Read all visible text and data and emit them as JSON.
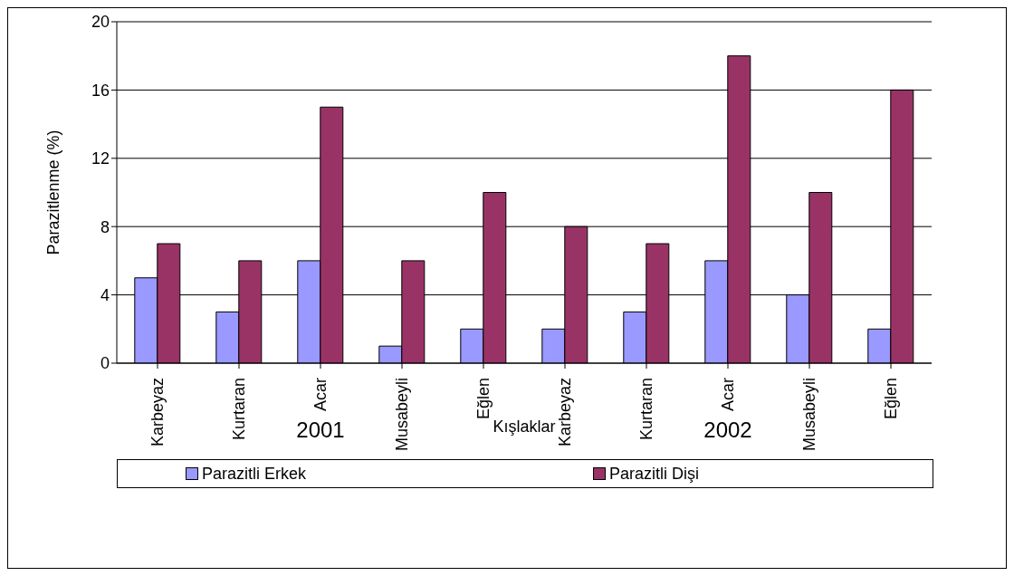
{
  "chart_data": {
    "type": "bar",
    "xlabel": "Kışlaklar",
    "ylabel": "Parazitlenme (%)",
    "categories": [
      "Karbeyaz",
      "Kurtaran",
      "Acar",
      "Musabeyli",
      "Eğlen",
      "Karbeyaz",
      "Kurtaran",
      "Acar",
      "Musabeyli",
      "Eğlen"
    ],
    "series": [
      {
        "name": "Parazitli Erkek",
        "color": "#9999ff",
        "values": [
          5,
          3,
          6,
          1,
          2,
          2,
          3,
          6,
          4,
          2
        ]
      },
      {
        "name": "Parazitli Dişi",
        "color": "#993366",
        "values": [
          7,
          6,
          15,
          6,
          10,
          8,
          7,
          18,
          10,
          16
        ]
      }
    ],
    "ylim": [
      0,
      20
    ],
    "yticks": [
      0,
      4,
      8,
      12,
      16,
      20
    ],
    "grid": "y",
    "legend": "bottom",
    "annotations": [
      "2001",
      "2002"
    ]
  }
}
